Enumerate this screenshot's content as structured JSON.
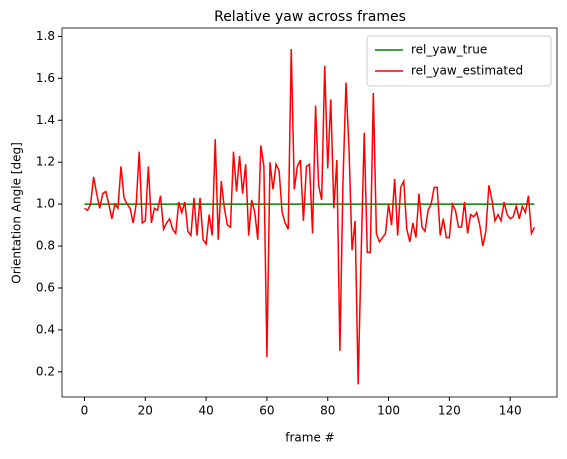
{
  "chart_data": {
    "type": "line",
    "title": "Relative yaw across frames",
    "x_label": "frame #",
    "y_label": "Orientation Angle [deg]",
    "x": [
      0,
      1,
      2,
      3,
      4,
      5,
      6,
      7,
      8,
      9,
      10,
      11,
      12,
      13,
      14,
      15,
      16,
      17,
      18,
      19,
      20,
      21,
      22,
      23,
      24,
      25,
      26,
      27,
      28,
      29,
      30,
      31,
      32,
      33,
      34,
      35,
      36,
      37,
      38,
      39,
      40,
      41,
      42,
      43,
      44,
      45,
      46,
      47,
      48,
      49,
      50,
      51,
      52,
      53,
      54,
      55,
      56,
      57,
      58,
      59,
      60,
      61,
      62,
      63,
      64,
      65,
      66,
      67,
      68,
      69,
      70,
      71,
      72,
      73,
      74,
      75,
      76,
      77,
      78,
      79,
      80,
      81,
      82,
      83,
      84,
      85,
      86,
      87,
      88,
      89,
      90,
      91,
      92,
      93,
      94,
      95,
      96,
      97,
      98,
      99,
      100,
      101,
      102,
      103,
      104,
      105,
      106,
      107,
      108,
      109,
      110,
      111,
      112,
      113,
      114,
      115,
      116,
      117,
      118,
      119,
      120,
      121,
      122,
      123,
      124,
      125,
      126,
      127,
      128,
      129,
      130,
      131,
      132,
      133,
      134,
      135,
      136,
      137,
      138,
      139,
      140,
      141,
      142,
      143,
      144,
      145,
      146,
      147,
      148
    ],
    "series": [
      {
        "name": "rel_yaw_true",
        "color": "#008000",
        "values": [
          1.0,
          1.0,
          1.0,
          1.0,
          1.0,
          1.0,
          1.0,
          1.0,
          1.0,
          1.0,
          1.0,
          1.0,
          1.0,
          1.0,
          1.0,
          1.0,
          1.0,
          1.0,
          1.0,
          1.0,
          1.0,
          1.0,
          1.0,
          1.0,
          1.0,
          1.0,
          1.0,
          1.0,
          1.0,
          1.0,
          1.0,
          1.0,
          1.0,
          1.0,
          1.0,
          1.0,
          1.0,
          1.0,
          1.0,
          1.0,
          1.0,
          1.0,
          1.0,
          1.0,
          1.0,
          1.0,
          1.0,
          1.0,
          1.0,
          1.0,
          1.0,
          1.0,
          1.0,
          1.0,
          1.0,
          1.0,
          1.0,
          1.0,
          1.0,
          1.0,
          1.0,
          1.0,
          1.0,
          1.0,
          1.0,
          1.0,
          1.0,
          1.0,
          1.0,
          1.0,
          1.0,
          1.0,
          1.0,
          1.0,
          1.0,
          1.0,
          1.0,
          1.0,
          1.0,
          1.0,
          1.0,
          1.0,
          1.0,
          1.0,
          1.0,
          1.0,
          1.0,
          1.0,
          1.0,
          1.0,
          1.0,
          1.0,
          1.0,
          1.0,
          1.0,
          1.0,
          1.0,
          1.0,
          1.0,
          1.0,
          1.0,
          1.0,
          1.0,
          1.0,
          1.0,
          1.0,
          1.0,
          1.0,
          1.0,
          1.0,
          1.0,
          1.0,
          1.0,
          1.0,
          1.0,
          1.0,
          1.0,
          1.0,
          1.0,
          1.0,
          1.0,
          1.0,
          1.0,
          1.0,
          1.0,
          1.0,
          1.0,
          1.0,
          1.0,
          1.0,
          1.0,
          1.0,
          1.0,
          1.0,
          1.0,
          1.0,
          1.0,
          1.0,
          1.0,
          1.0,
          1.0,
          1.0,
          1.0,
          1.0,
          1.0,
          1.0,
          1.0,
          1.0,
          1.0
        ]
      },
      {
        "name": "rel_yaw_estimated",
        "color": "#ff0000",
        "values": [
          0.98,
          0.97,
          1.0,
          1.13,
          1.05,
          0.98,
          1.05,
          1.06,
          1.0,
          0.93,
          1.0,
          0.98,
          1.18,
          1.03,
          1.0,
          0.98,
          0.91,
          1.0,
          1.25,
          0.91,
          0.92,
          1.18,
          0.91,
          0.98,
          0.97,
          1.04,
          0.88,
          0.91,
          0.93,
          0.88,
          0.86,
          1.01,
          0.96,
          1.01,
          0.87,
          0.85,
          1.03,
          0.85,
          1.03,
          0.83,
          0.81,
          0.95,
          0.85,
          1.31,
          0.83,
          1.11,
          0.98,
          0.9,
          0.89,
          1.25,
          1.06,
          1.23,
          1.05,
          1.19,
          0.85,
          1.02,
          0.96,
          0.83,
          1.28,
          1.18,
          0.27,
          1.2,
          1.07,
          1.19,
          1.16,
          0.96,
          0.91,
          0.88,
          1.74,
          1.07,
          1.18,
          1.21,
          0.92,
          1.18,
          1.19,
          0.86,
          1.47,
          1.09,
          1.02,
          1.66,
          1.17,
          1.5,
          0.98,
          1.21,
          0.3,
          1.1,
          1.58,
          1.26,
          0.78,
          0.92,
          0.14,
          0.77,
          1.34,
          0.77,
          0.77,
          1.53,
          0.86,
          0.82,
          0.84,
          0.86,
          1.0,
          0.9,
          1.12,
          0.85,
          1.08,
          1.11,
          0.88,
          0.82,
          0.91,
          0.84,
          1.05,
          0.89,
          0.87,
          0.97,
          1.0,
          1.08,
          1.08,
          0.85,
          0.93,
          0.84,
          0.84,
          1.0,
          0.97,
          0.89,
          0.89,
          1.01,
          0.86,
          0.95,
          0.94,
          0.96,
          0.9,
          0.8,
          0.87,
          1.09,
          1.02,
          0.92,
          0.95,
          0.92,
          1.01,
          0.95,
          0.93,
          0.94,
          0.99,
          0.93,
          0.99,
          0.96,
          1.04,
          0.86,
          0.89
        ]
      }
    ],
    "xlim": [
      -7.4,
      155.4
    ],
    "ylim": [
      0.08,
      1.84
    ],
    "xticks": [
      0,
      20,
      40,
      60,
      80,
      100,
      120,
      140
    ],
    "yticks": [
      0.2,
      0.4,
      0.6,
      0.8,
      {
        "value": 1.0,
        "label": "1.0"
      },
      1.2,
      1.4,
      1.6,
      1.8
    ],
    "legend": "upper right"
  }
}
